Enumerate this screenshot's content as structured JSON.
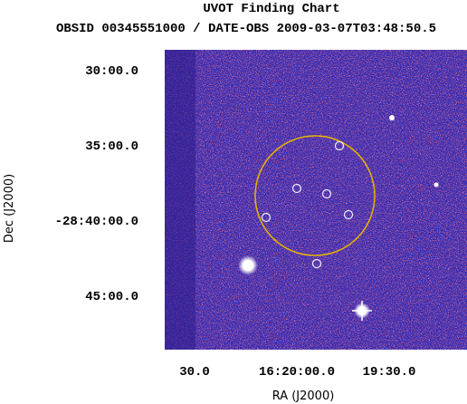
{
  "figure": {
    "title": "UVOT Finding Chart",
    "subtitle": "OBSID 00345551000 / DATE-OBS 2009-03-07T03:48:50.5",
    "xlabel": "RA (J2000)",
    "ylabel": "Dec (J2000)",
    "xtick_labels": [
      "30.0",
      "16:20:00.0",
      "19:30.0"
    ],
    "ytick_labels": [
      "30:00.0",
      "35:00.0",
      "-28:40:00.0",
      "45:00.0"
    ]
  }
}
